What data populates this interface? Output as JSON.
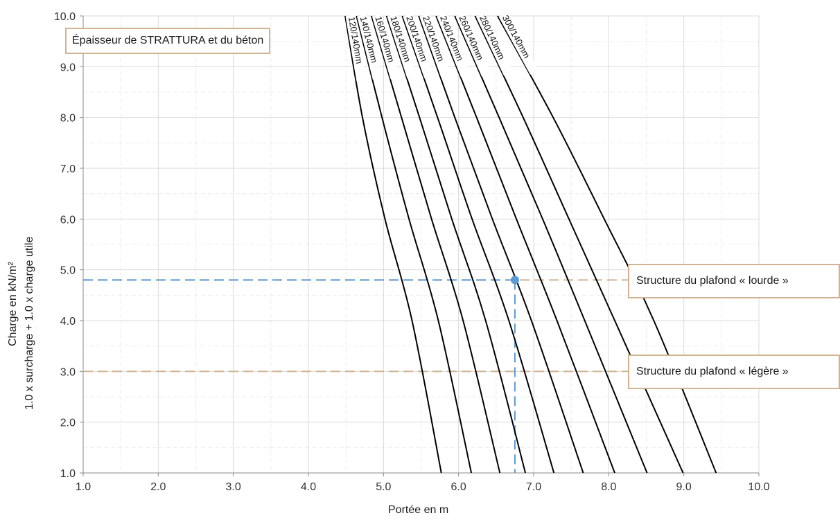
{
  "chart_data": {
    "type": "line",
    "xlabel": "Portée en m",
    "ylabel_line1": "Charge en kN/m²",
    "ylabel_line2": "1.0 x surcharge + 1.0 x charge utile",
    "xlim": [
      1.0,
      10.0
    ],
    "ylim": [
      1.0,
      10.0
    ],
    "x_ticks": [
      "1.0",
      "2.0",
      "3.0",
      "4.0",
      "5.0",
      "6.0",
      "7.0",
      "8.0",
      "9.0",
      "10.0"
    ],
    "y_ticks": [
      "1.0",
      "2.0",
      "3.0",
      "4.0",
      "5.0",
      "6.0",
      "7.0",
      "8.0",
      "9.0",
      "10.0"
    ],
    "grid": true,
    "legend_title": "Épaisseur de STRATTURA et du béton",
    "series": [
      {
        "name": "120/140mm",
        "points": [
          [
            4.49,
            10.0
          ],
          [
            4.72,
            8.0
          ],
          [
            5.02,
            6.0
          ],
          [
            5.38,
            4.0
          ],
          [
            5.77,
            1.0
          ]
        ]
      },
      {
        "name": "140/140mm",
        "points": [
          [
            4.64,
            10.0
          ],
          [
            4.98,
            8.0
          ],
          [
            5.34,
            6.0
          ],
          [
            5.73,
            4.0
          ],
          [
            6.17,
            1.0
          ]
        ]
      },
      {
        "name": "160/140mm",
        "points": [
          [
            4.84,
            10.0
          ],
          [
            5.24,
            8.0
          ],
          [
            5.64,
            6.0
          ],
          [
            6.06,
            4.0
          ],
          [
            6.55,
            1.0
          ]
        ]
      },
      {
        "name": "180/140mm",
        "points": [
          [
            5.04,
            10.0
          ],
          [
            5.48,
            8.0
          ],
          [
            5.91,
            6.0
          ],
          [
            6.36,
            4.0
          ],
          [
            6.89,
            1.0
          ]
        ]
      },
      {
        "name": "200/140mm",
        "points": [
          [
            5.25,
            10.0
          ],
          [
            5.72,
            8.0
          ],
          [
            6.18,
            6.0
          ],
          [
            6.67,
            4.0
          ],
          [
            7.27,
            1.0
          ]
        ]
      },
      {
        "name": "220/140mm",
        "points": [
          [
            5.47,
            10.0
          ],
          [
            5.95,
            8.0
          ],
          [
            6.45,
            6.0
          ],
          [
            6.97,
            4.0
          ],
          [
            7.66,
            1.0
          ]
        ]
      },
      {
        "name": "240/140mm",
        "points": [
          [
            5.7,
            10.0
          ],
          [
            6.24,
            8.0
          ],
          [
            6.77,
            6.0
          ],
          [
            7.31,
            4.0
          ],
          [
            8.08,
            1.0
          ]
        ]
      },
      {
        "name": "260/140mm",
        "points": [
          [
            5.95,
            10.0
          ],
          [
            6.54,
            8.0
          ],
          [
            7.12,
            6.0
          ],
          [
            7.68,
            4.0
          ],
          [
            8.51,
            1.0
          ]
        ]
      },
      {
        "name": "280/140mm",
        "points": [
          [
            6.22,
            10.0
          ],
          [
            6.86,
            8.0
          ],
          [
            7.47,
            6.0
          ],
          [
            8.08,
            4.0
          ],
          [
            8.99,
            1.0
          ]
        ]
      },
      {
        "name": "300/140mm",
        "points": [
          [
            6.52,
            10.0
          ],
          [
            7.26,
            8.0
          ],
          [
            7.94,
            6.0
          ],
          [
            8.6,
            4.0
          ],
          [
            9.43,
            1.0
          ]
        ]
      }
    ],
    "reference_lines": [
      {
        "label": "Structure du plafond « lourde »",
        "y": 4.8,
        "color": "#d1b392"
      },
      {
        "label": "Structure du plafond « légère »",
        "y": 3.0,
        "color": "#d1b392"
      }
    ],
    "example": {
      "x": 6.75,
      "y": 4.8,
      "color": "#5b9bd5"
    }
  },
  "colors": {
    "curve": "#000000",
    "grid": "#d9d9d9",
    "grid_minor": "#ebebeb",
    "box_border": "#d1b392",
    "example": "#5b9bd5"
  }
}
